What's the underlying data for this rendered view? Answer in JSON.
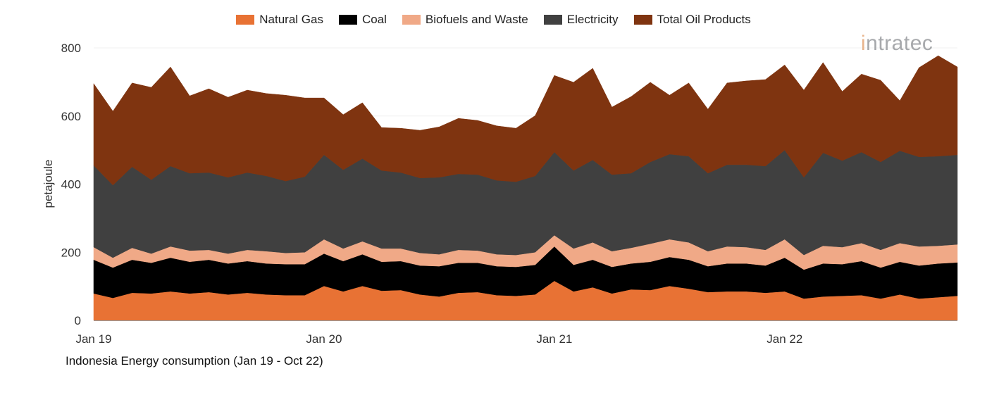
{
  "chart_data": {
    "type": "area",
    "stacked": true,
    "caption": "Indonesia Energy consumption (Jan 19 - Oct 22)",
    "ylabel": "petajoule",
    "xlabel": "",
    "ylim": [
      0,
      800
    ],
    "yticks": [
      0,
      200,
      400,
      600,
      800
    ],
    "xticks": [
      {
        "label": "Jan 19",
        "index": 0
      },
      {
        "label": "Jan 20",
        "index": 12
      },
      {
        "label": "Jan 21",
        "index": 24
      },
      {
        "label": "Jan 22",
        "index": 36
      }
    ],
    "x_start": "Jan 19",
    "x_end": "Oct 22",
    "legend_position": "top",
    "series": [
      {
        "name": "Natural Gas",
        "color": "#e87234",
        "values": [
          79,
          66,
          81,
          79,
          85,
          79,
          83,
          76,
          81,
          76,
          74,
          74,
          101,
          85,
          101,
          87,
          89,
          76,
          70,
          81,
          83,
          74,
          72,
          76,
          116,
          85,
          97,
          79,
          91,
          89,
          101,
          93,
          83,
          85,
          85,
          81,
          85,
          64,
          70,
          72,
          74,
          64,
          76,
          64,
          68,
          72
        ]
      },
      {
        "name": "Coal",
        "color": "#000000",
        "values": [
          99,
          89,
          97,
          90,
          99,
          93,
          95,
          91,
          93,
          91,
          91,
          91,
          95,
          89,
          93,
          85,
          85,
          85,
          89,
          88,
          86,
          85,
          85,
          87,
          101,
          78,
          81,
          78,
          76,
          83,
          85,
          85,
          76,
          82,
          82,
          80,
          99,
          85,
          97,
          93,
          100,
          91,
          96,
          97,
          99,
          98
        ]
      },
      {
        "name": "Biofuels and Waste",
        "color": "#f0a987",
        "values": [
          37,
          29,
          35,
          27,
          33,
          33,
          29,
          29,
          33,
          36,
          33,
          35,
          42,
          37,
          38,
          39,
          37,
          37,
          35,
          38,
          36,
          35,
          35,
          37,
          33,
          48,
          51,
          46,
          46,
          53,
          52,
          51,
          44,
          50,
          48,
          46,
          54,
          43,
          52,
          50,
          53,
          52,
          55,
          56,
          52,
          53
        ]
      },
      {
        "name": "Electricity",
        "color": "#404040",
        "values": [
          240,
          213,
          238,
          217,
          236,
          227,
          227,
          224,
          227,
          221,
          211,
          222,
          248,
          231,
          243,
          229,
          223,
          220,
          226,
          223,
          223,
          217,
          215,
          224,
          244,
          229,
          242,
          225,
          219,
          240,
          250,
          253,
          229,
          240,
          242,
          246,
          262,
          228,
          273,
          254,
          267,
          258,
          271,
          263,
          263,
          263
        ]
      },
      {
        "name": "Total Oil Products",
        "color": "#7f3410",
        "values": [
          240,
          217,
          246,
          271,
          291,
          227,
          246,
          235,
          242,
          242,
          252,
          231,
          167,
          162,
          164,
          126,
          130,
          140,
          148,
          163,
          159,
          160,
          157,
          177,
          225,
          259,
          269,
          198,
          225,
          234,
          173,
          215,
          188,
          240,
          246,
          254,
          250,
          256,
          265,
          203,
          229,
          240,
          147,
          262,
          295,
          258
        ]
      }
    ]
  },
  "logo": {
    "text": "intratec"
  }
}
